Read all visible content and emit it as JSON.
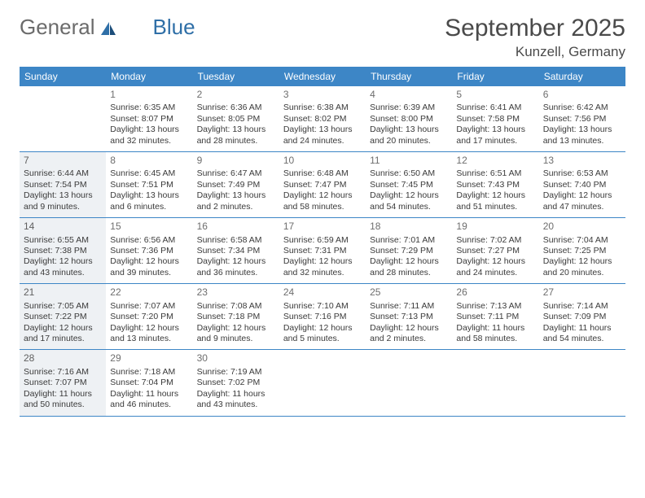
{
  "brand": {
    "part1": "General",
    "part2": "Blue"
  },
  "header": {
    "month_title": "September 2025",
    "location": "Kunzell, Germany"
  },
  "colors": {
    "accent": "#3d86c6",
    "shade_bg": "#eef1f4",
    "text": "#3a3a3a",
    "header_text": "#4a4a4a",
    "brand_gray": "#6b6b6b",
    "brand_blue": "#2f6fa7",
    "background": "#ffffff"
  },
  "day_headers": [
    "Sunday",
    "Monday",
    "Tuesday",
    "Wednesday",
    "Thursday",
    "Friday",
    "Saturday"
  ],
  "weeks": [
    [
      {
        "day": "",
        "blank": true
      },
      {
        "day": "1",
        "sunrise": "Sunrise: 6:35 AM",
        "sunset": "Sunset: 8:07 PM",
        "daylight": "Daylight: 13 hours and 32 minutes."
      },
      {
        "day": "2",
        "sunrise": "Sunrise: 6:36 AM",
        "sunset": "Sunset: 8:05 PM",
        "daylight": "Daylight: 13 hours and 28 minutes."
      },
      {
        "day": "3",
        "sunrise": "Sunrise: 6:38 AM",
        "sunset": "Sunset: 8:02 PM",
        "daylight": "Daylight: 13 hours and 24 minutes."
      },
      {
        "day": "4",
        "sunrise": "Sunrise: 6:39 AM",
        "sunset": "Sunset: 8:00 PM",
        "daylight": "Daylight: 13 hours and 20 minutes."
      },
      {
        "day": "5",
        "sunrise": "Sunrise: 6:41 AM",
        "sunset": "Sunset: 7:58 PM",
        "daylight": "Daylight: 13 hours and 17 minutes."
      },
      {
        "day": "6",
        "sunrise": "Sunrise: 6:42 AM",
        "sunset": "Sunset: 7:56 PM",
        "daylight": "Daylight: 13 hours and 13 minutes."
      }
    ],
    [
      {
        "day": "7",
        "shade": true,
        "sunrise": "Sunrise: 6:44 AM",
        "sunset": "Sunset: 7:54 PM",
        "daylight": "Daylight: 13 hours and 9 minutes."
      },
      {
        "day": "8",
        "sunrise": "Sunrise: 6:45 AM",
        "sunset": "Sunset: 7:51 PM",
        "daylight": "Daylight: 13 hours and 6 minutes."
      },
      {
        "day": "9",
        "sunrise": "Sunrise: 6:47 AM",
        "sunset": "Sunset: 7:49 PM",
        "daylight": "Daylight: 13 hours and 2 minutes."
      },
      {
        "day": "10",
        "sunrise": "Sunrise: 6:48 AM",
        "sunset": "Sunset: 7:47 PM",
        "daylight": "Daylight: 12 hours and 58 minutes."
      },
      {
        "day": "11",
        "sunrise": "Sunrise: 6:50 AM",
        "sunset": "Sunset: 7:45 PM",
        "daylight": "Daylight: 12 hours and 54 minutes."
      },
      {
        "day": "12",
        "sunrise": "Sunrise: 6:51 AM",
        "sunset": "Sunset: 7:43 PM",
        "daylight": "Daylight: 12 hours and 51 minutes."
      },
      {
        "day": "13",
        "sunrise": "Sunrise: 6:53 AM",
        "sunset": "Sunset: 7:40 PM",
        "daylight": "Daylight: 12 hours and 47 minutes."
      }
    ],
    [
      {
        "day": "14",
        "shade": true,
        "sunrise": "Sunrise: 6:55 AM",
        "sunset": "Sunset: 7:38 PM",
        "daylight": "Daylight: 12 hours and 43 minutes."
      },
      {
        "day": "15",
        "sunrise": "Sunrise: 6:56 AM",
        "sunset": "Sunset: 7:36 PM",
        "daylight": "Daylight: 12 hours and 39 minutes."
      },
      {
        "day": "16",
        "sunrise": "Sunrise: 6:58 AM",
        "sunset": "Sunset: 7:34 PM",
        "daylight": "Daylight: 12 hours and 36 minutes."
      },
      {
        "day": "17",
        "sunrise": "Sunrise: 6:59 AM",
        "sunset": "Sunset: 7:31 PM",
        "daylight": "Daylight: 12 hours and 32 minutes."
      },
      {
        "day": "18",
        "sunrise": "Sunrise: 7:01 AM",
        "sunset": "Sunset: 7:29 PM",
        "daylight": "Daylight: 12 hours and 28 minutes."
      },
      {
        "day": "19",
        "sunrise": "Sunrise: 7:02 AM",
        "sunset": "Sunset: 7:27 PM",
        "daylight": "Daylight: 12 hours and 24 minutes."
      },
      {
        "day": "20",
        "sunrise": "Sunrise: 7:04 AM",
        "sunset": "Sunset: 7:25 PM",
        "daylight": "Daylight: 12 hours and 20 minutes."
      }
    ],
    [
      {
        "day": "21",
        "shade": true,
        "sunrise": "Sunrise: 7:05 AM",
        "sunset": "Sunset: 7:22 PM",
        "daylight": "Daylight: 12 hours and 17 minutes."
      },
      {
        "day": "22",
        "sunrise": "Sunrise: 7:07 AM",
        "sunset": "Sunset: 7:20 PM",
        "daylight": "Daylight: 12 hours and 13 minutes."
      },
      {
        "day": "23",
        "sunrise": "Sunrise: 7:08 AM",
        "sunset": "Sunset: 7:18 PM",
        "daylight": "Daylight: 12 hours and 9 minutes."
      },
      {
        "day": "24",
        "sunrise": "Sunrise: 7:10 AM",
        "sunset": "Sunset: 7:16 PM",
        "daylight": "Daylight: 12 hours and 5 minutes."
      },
      {
        "day": "25",
        "sunrise": "Sunrise: 7:11 AM",
        "sunset": "Sunset: 7:13 PM",
        "daylight": "Daylight: 12 hours and 2 minutes."
      },
      {
        "day": "26",
        "sunrise": "Sunrise: 7:13 AM",
        "sunset": "Sunset: 7:11 PM",
        "daylight": "Daylight: 11 hours and 58 minutes."
      },
      {
        "day": "27",
        "sunrise": "Sunrise: 7:14 AM",
        "sunset": "Sunset: 7:09 PM",
        "daylight": "Daylight: 11 hours and 54 minutes."
      }
    ],
    [
      {
        "day": "28",
        "shade": true,
        "sunrise": "Sunrise: 7:16 AM",
        "sunset": "Sunset: 7:07 PM",
        "daylight": "Daylight: 11 hours and 50 minutes."
      },
      {
        "day": "29",
        "sunrise": "Sunrise: 7:18 AM",
        "sunset": "Sunset: 7:04 PM",
        "daylight": "Daylight: 11 hours and 46 minutes."
      },
      {
        "day": "30",
        "sunrise": "Sunrise: 7:19 AM",
        "sunset": "Sunset: 7:02 PM",
        "daylight": "Daylight: 11 hours and 43 minutes."
      },
      {
        "day": "",
        "blank": true
      },
      {
        "day": "",
        "blank": true
      },
      {
        "day": "",
        "blank": true
      },
      {
        "day": "",
        "blank": true
      }
    ]
  ]
}
